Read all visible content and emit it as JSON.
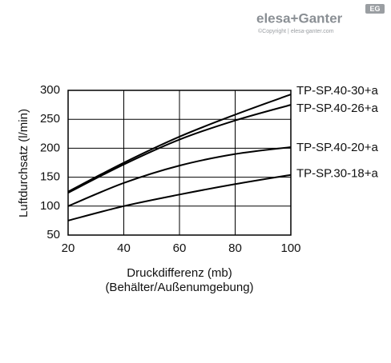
{
  "chart_data": {
    "type": "line",
    "brand": "elesa+Ganter",
    "brand_badge": "EG",
    "copyright": "©Copyright | elesa-ganter.com",
    "y_label": "Luftdurchsatz (l/min)",
    "x_label": "Druckdifferenz (mb)",
    "x_label_note": "(Behälter/Außenumgebung)",
    "x": [
      20,
      40,
      60,
      80,
      100
    ],
    "series": [
      {
        "name": "TP-SP.40-30+a",
        "color": "#000000",
        "values": [
          125,
          175,
          220,
          258,
          293
        ]
      },
      {
        "name": "TP-SP.40-26+a",
        "color": "#000000",
        "values": [
          123,
          172,
          215,
          248,
          275
        ]
      },
      {
        "name": "TP-SP.40-20+a",
        "color": "#000000",
        "values": [
          100,
          140,
          170,
          190,
          202
        ]
      },
      {
        "name": "TP-SP.30-18+a",
        "color": "#000000",
        "values": [
          75,
          100,
          120,
          138,
          154
        ]
      }
    ],
    "xlim": [
      20,
      100
    ],
    "xticks": [
      20,
      40,
      60,
      80,
      100
    ],
    "ylim": [
      50,
      300
    ],
    "yticks": [
      50,
      100,
      150,
      200,
      250,
      300
    ],
    "grid": true
  }
}
